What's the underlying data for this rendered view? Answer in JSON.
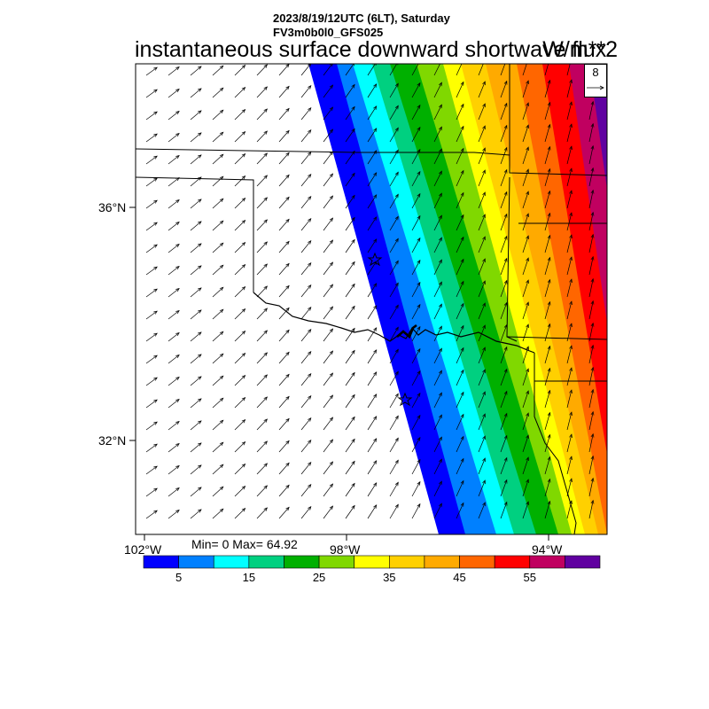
{
  "header": {
    "line1": "2023/8/19/12UTC (6LT), Saturday",
    "line2": "FV3m0b0l0_GFS025",
    "title": "instantaneous surface downward shortwave flux",
    "units": "W/m**2"
  },
  "axes": {
    "lat_labels": [
      "36°N",
      "32°N"
    ],
    "lon_labels": [
      "102°W",
      "98°W",
      "94°W"
    ]
  },
  "stats": {
    "text": "Min= 0 Max= 64.92"
  },
  "reference_vector": {
    "value": "8",
    "icon": "arrow-right-icon"
  },
  "colorbar": {
    "labels": [
      "5",
      "15",
      "25",
      "35",
      "45",
      "55"
    ],
    "colors": [
      "#0000ff",
      "#0080ff",
      "#00ffff",
      "#00d080",
      "#00b000",
      "#80d800",
      "#ffff00",
      "#ffd000",
      "#ffaa00",
      "#ff6600",
      "#ff0000",
      "#c00060",
      "#6000a0"
    ]
  },
  "markers": {
    "icon": "star-icon"
  }
}
